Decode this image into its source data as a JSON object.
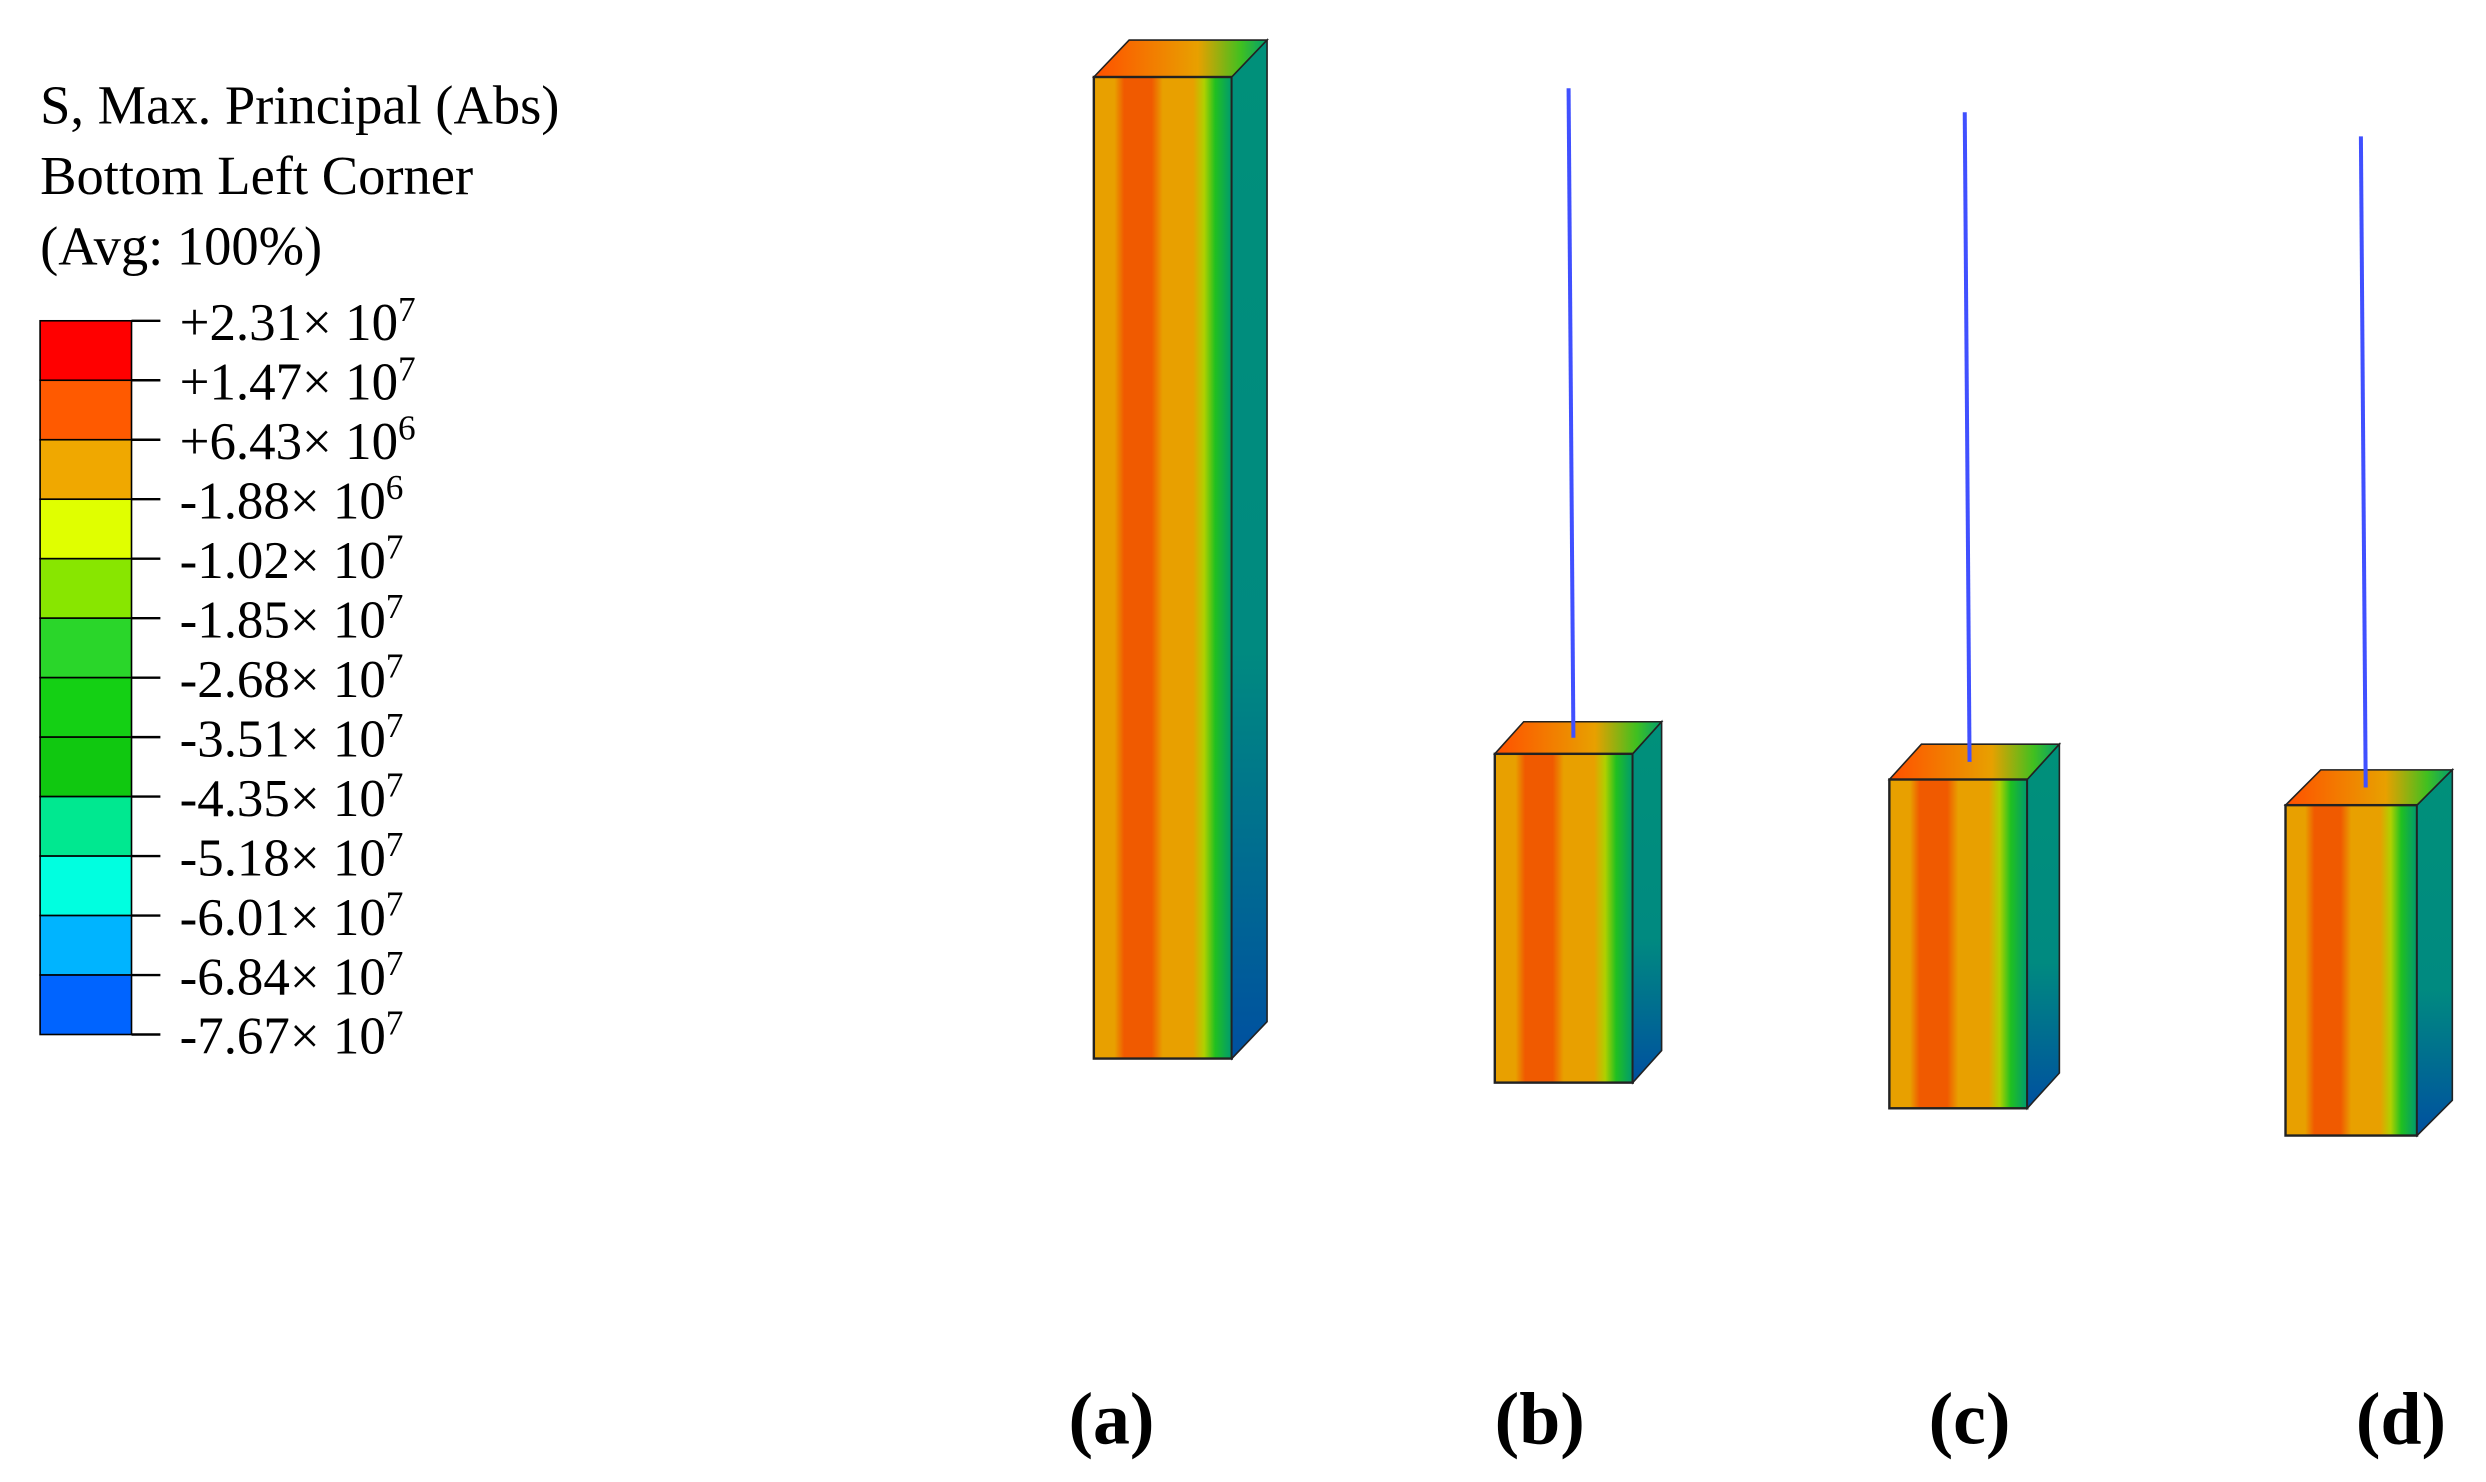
{
  "legend": {
    "title_lines": [
      "S, Max. Principal (Abs)",
      "Bottom Left Corner",
      "(Avg: 100%)"
    ],
    "colors": [
      "#ff0000",
      "#ff5a00",
      "#f0a800",
      "#e0ff00",
      "#88e600",
      "#2ad62a",
      "#14d014",
      "#10c810",
      "#00e890",
      "#00ffe0",
      "#00b4ff",
      "#0064ff"
    ],
    "labels": [
      {
        "base": "+2.31× 10",
        "exp": "7"
      },
      {
        "base": "+1.47× 10",
        "exp": "7"
      },
      {
        "base": "+6.43× 10",
        "exp": "6"
      },
      {
        "base": "-1.88× 10",
        "exp": "6"
      },
      {
        "base": "-1.02× 10",
        "exp": "7"
      },
      {
        "base": "-1.85× 10",
        "exp": "7"
      },
      {
        "base": "-2.68× 10",
        "exp": "7"
      },
      {
        "base": "-3.51× 10",
        "exp": "7"
      },
      {
        "base": "-4.35× 10",
        "exp": "7"
      },
      {
        "base": "-5.18× 10",
        "exp": "7"
      },
      {
        "base": "-6.01× 10",
        "exp": "7"
      },
      {
        "base": "-6.84× 10",
        "exp": "7"
      },
      {
        "base": "-7.67× 10",
        "exp": "7"
      }
    ]
  },
  "panels": [
    "(a)",
    "(b)",
    "(c)",
    "(d)"
  ]
}
